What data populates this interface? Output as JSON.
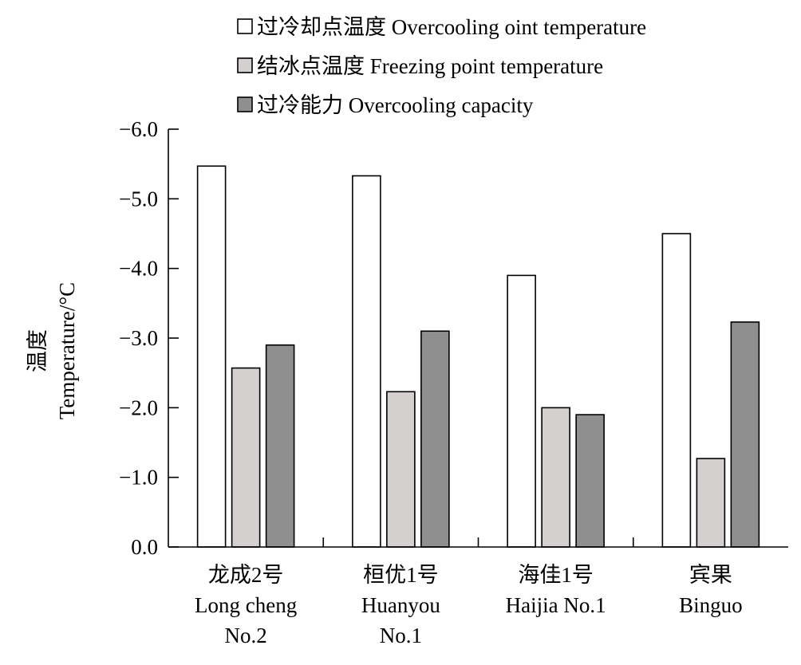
{
  "chart_data": {
    "type": "bar",
    "title": "",
    "ylabel_cn": "温度",
    "ylabel": "Temperature/°C",
    "ylim": [
      0,
      -6.0
    ],
    "yticks": [
      "0.0",
      "−1.0",
      "−2.0",
      "−3.0",
      "−4.0",
      "−5.0",
      "−6.0"
    ],
    "grid": false,
    "legend_position": "top-center",
    "categories": [
      {
        "lines": [
          "龙成2号",
          "Long cheng",
          "No.2"
        ]
      },
      {
        "lines": [
          "桓优1号",
          "Huanyou",
          "No.1"
        ]
      },
      {
        "lines": [
          "海佳1号",
          "Haijia No.1"
        ]
      },
      {
        "lines": [
          "宾果",
          "Binguo"
        ]
      }
    ],
    "series": [
      {
        "name": "过冷却点温度 Overcooling oint temperature",
        "color": "#ffffff",
        "values": [
          -5.47,
          -5.33,
          -3.9,
          -4.5
        ]
      },
      {
        "name": "结冰点温度 Freezing point temperature",
        "color": "#d4d0d0",
        "values": [
          -2.57,
          -2.23,
          -2.0,
          -1.27
        ]
      },
      {
        "name": "过冷能力 Overcooling capacity",
        "color": "#8f8f8f",
        "values": [
          -2.9,
          -3.1,
          -1.9,
          -3.23
        ]
      }
    ]
  }
}
